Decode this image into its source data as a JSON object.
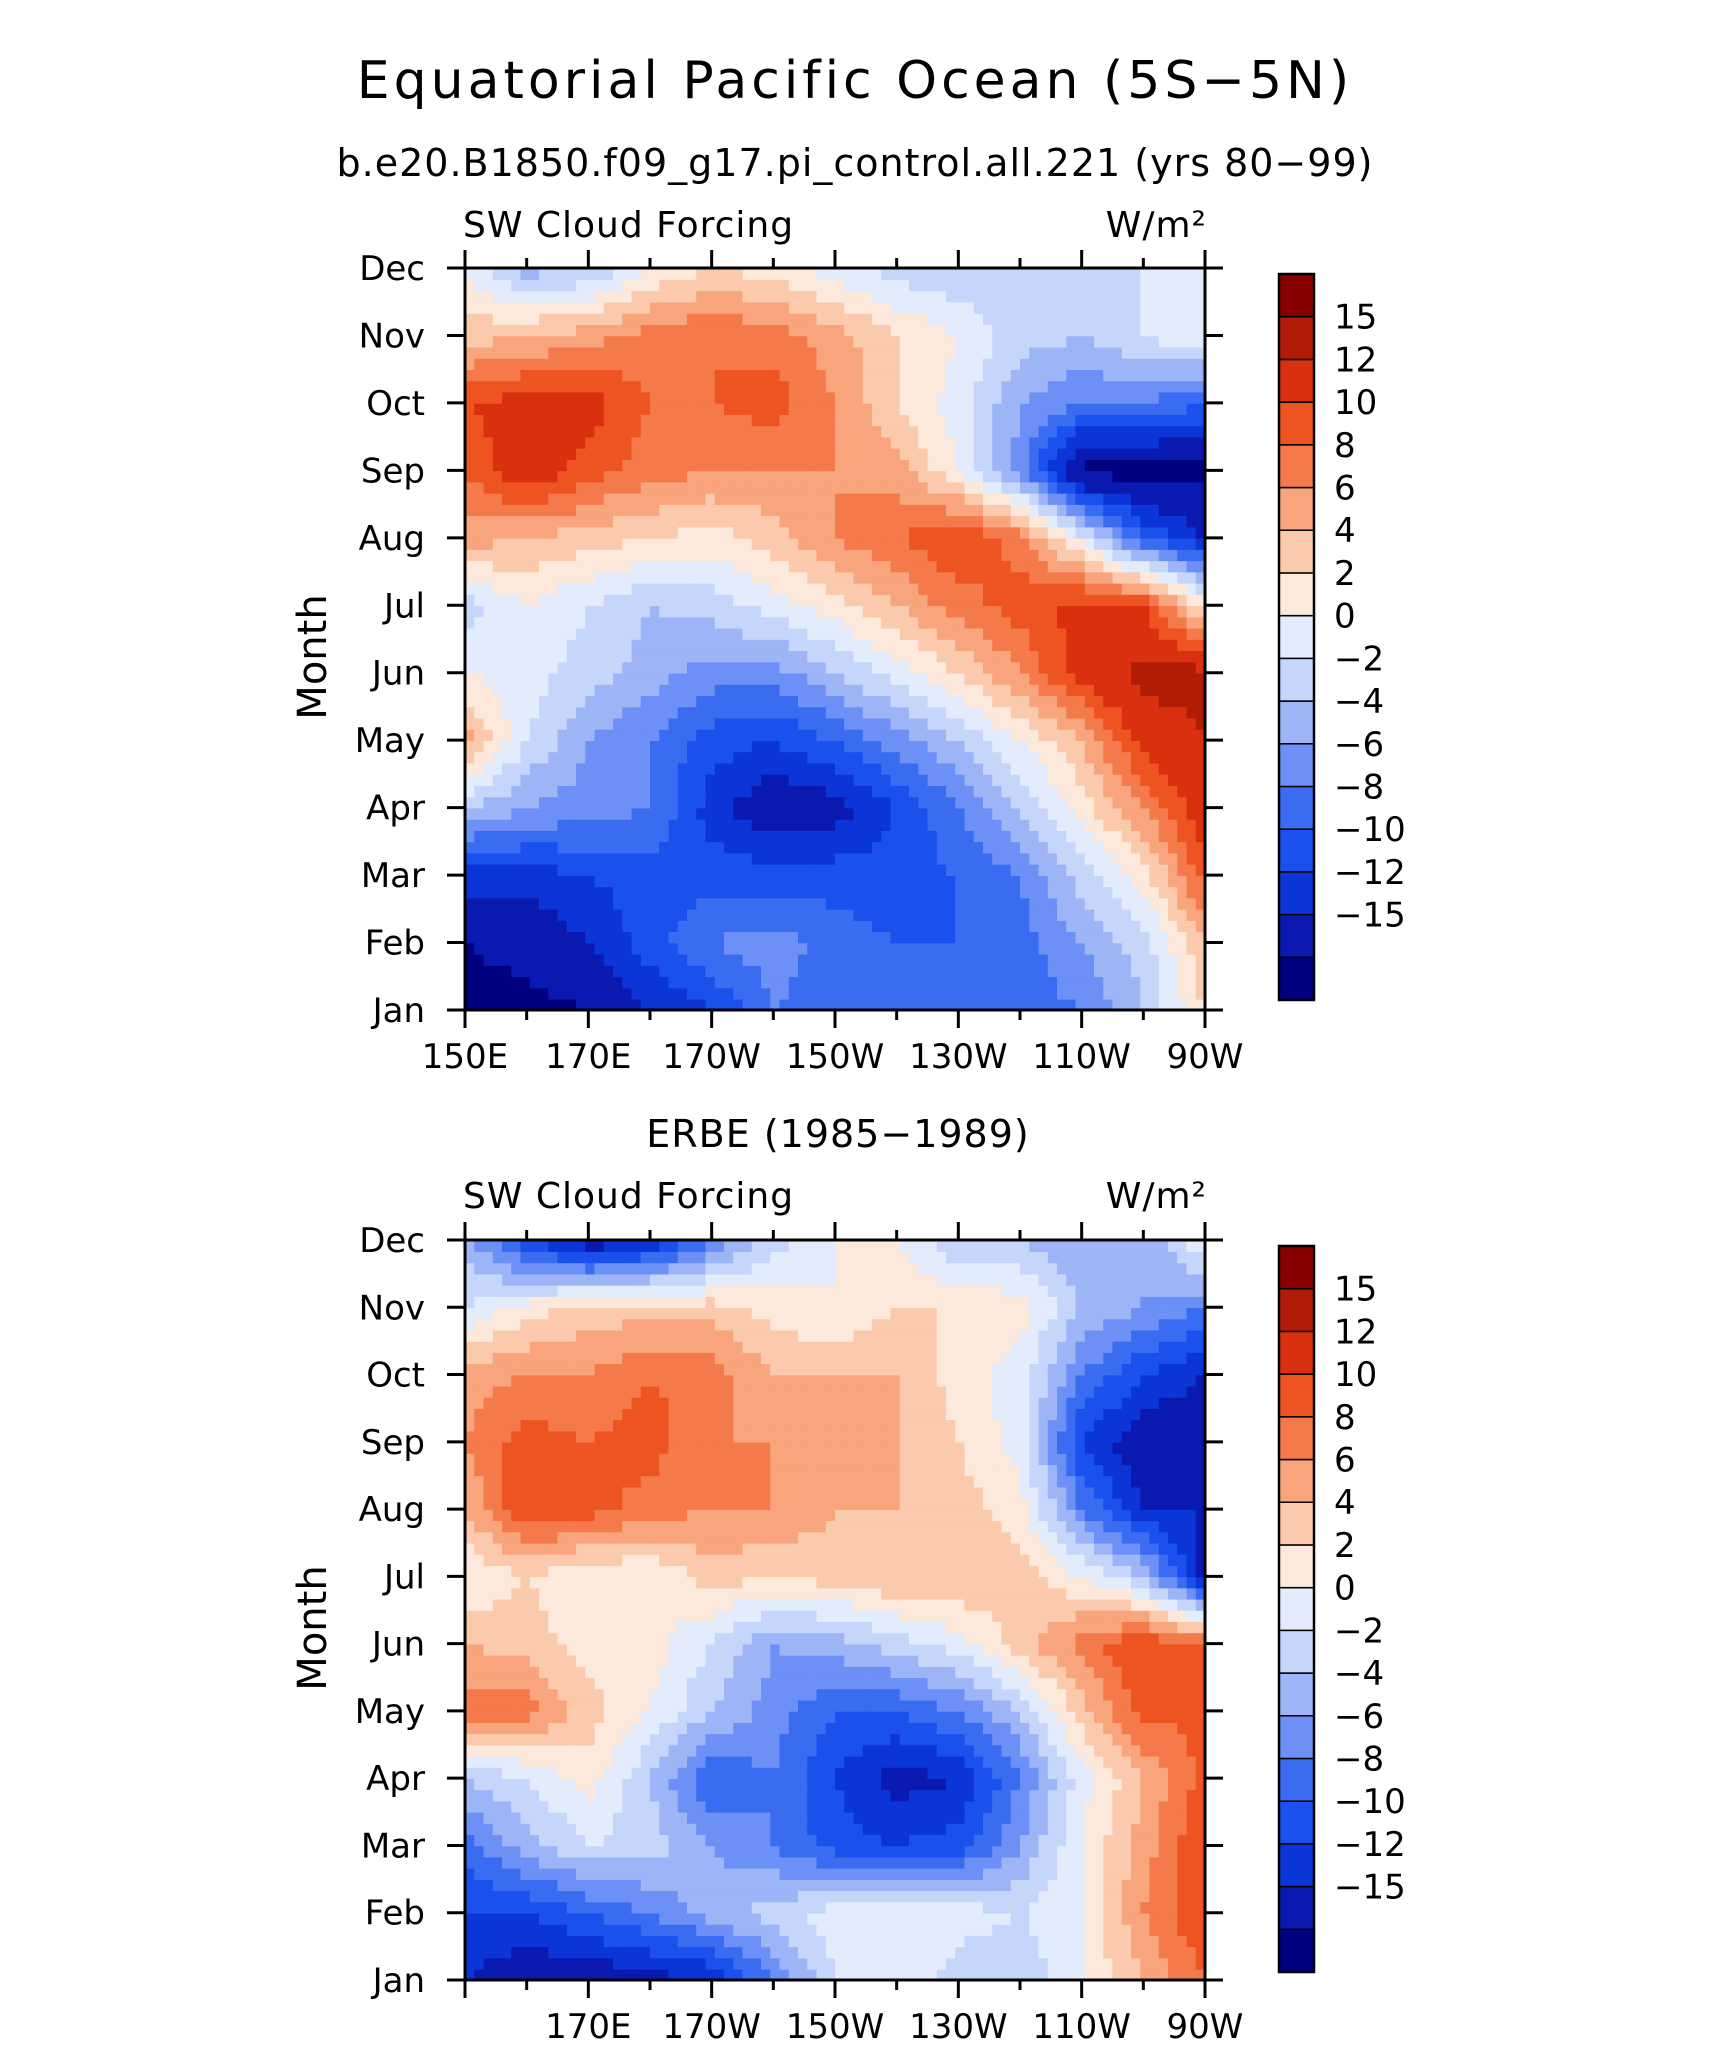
{
  "title": "Equatorial Pacific Ocean (5S−5N)",
  "colors": [
    "#000080",
    "#0a1ab0",
    "#0b35d6",
    "#1a50ec",
    "#3a6cf2",
    "#6c90f6",
    "#9db5f7",
    "#c6d6fa",
    "#e2ecfd",
    "#fde8dc",
    "#fbc9ac",
    "#f8a47c",
    "#f47a4b",
    "#ee5421",
    "#d93010",
    "#b01c06",
    "#880000"
  ],
  "colorbar_labels": [
    "15",
    "12",
    "10",
    "8",
    "6",
    "4",
    "2",
    "0",
    "−2",
    "−4",
    "−6",
    "−8",
    "−10",
    "−12",
    "−15"
  ],
  "chart_data": [
    {
      "type": "heatmap",
      "title": "b.e20.B1850.f09_g17.pi_control.all.221 (yrs 80−99)",
      "left_label": "SW Cloud Forcing",
      "right_label": "W/m²",
      "xlabel": "",
      "ylabel": "Month",
      "units": "W/m²",
      "x_ticks": [
        {
          "lon": 150,
          "label": "150E"
        },
        {
          "lon": 170,
          "label": "170E"
        },
        {
          "lon": 190,
          "label": "170W"
        },
        {
          "lon": 210,
          "label": "150W"
        },
        {
          "lon": 230,
          "label": "130W"
        },
        {
          "lon": 250,
          "label": "110W"
        },
        {
          "lon": 270,
          "label": "90W"
        }
      ],
      "xlim": [
        150,
        270
      ],
      "y_ticks": [
        "Jan",
        "Feb",
        "Mar",
        "Apr",
        "May",
        "Jun",
        "Jul",
        "Aug",
        "Sep",
        "Oct",
        "Nov",
        "Dec"
      ],
      "contour_levels": [
        -15,
        -12,
        -10,
        -8,
        -6,
        -4,
        -2,
        0,
        2,
        4,
        6,
        8,
        10,
        12,
        15
      ],
      "lons": [
        150,
        160,
        170,
        180,
        190,
        200,
        210,
        220,
        230,
        240,
        250,
        260,
        270
      ],
      "values": [
        [
          -16,
          -16,
          -15,
          -12,
          -10,
          -6,
          -7,
          -8,
          -8,
          -7,
          -6,
          -2,
          4
        ],
        [
          -15,
          -14,
          -12,
          -9,
          -6,
          -5,
          -7,
          -8,
          -8,
          -7,
          -4,
          -1,
          6
        ],
        [
          -11,
          -11,
          -10,
          -9,
          -9,
          -9,
          -9,
          -9,
          -8,
          -6,
          -1,
          3,
          11
        ],
        [
          -2,
          -4,
          -5,
          -6,
          -11,
          -14,
          -13,
          -10,
          -6,
          -2,
          3,
          8,
          14
        ],
        [
          7,
          0,
          -4,
          -6,
          -9,
          -10,
          -8,
          -5,
          -2,
          2,
          6,
          13,
          15
        ],
        [
          2,
          1,
          -1,
          -3,
          -5,
          -5,
          -2,
          1,
          4,
          8,
          13,
          16,
          16
        ],
        [
          -1,
          2,
          0,
          -2,
          -1,
          1,
          3,
          6,
          9,
          11,
          13,
          12,
          3
        ],
        [
          7,
          6,
          5,
          4,
          3,
          5,
          8,
          10,
          12,
          9,
          1,
          -8,
          -12
        ],
        [
          10,
          14,
          11,
          9,
          8,
          8,
          8,
          7,
          2,
          -5,
          -16,
          -16,
          -16
        ],
        [
          12,
          13,
          13,
          10,
          10,
          11,
          8,
          4,
          1,
          -4,
          -6,
          -6,
          -8
        ],
        [
          5,
          6,
          7,
          9,
          10,
          9,
          7,
          4,
          2,
          -1,
          -2,
          0,
          2
        ],
        [
          2,
          -3,
          -2,
          2,
          4,
          3,
          1,
          -1,
          -2,
          -2,
          -1,
          0,
          2
        ]
      ]
    },
    {
      "type": "heatmap",
      "title": "ERBE (1985−1989)",
      "left_label": "SW Cloud Forcing",
      "right_label": "W/m²",
      "xlabel": "",
      "ylabel": "Month",
      "units": "W/m²",
      "x_ticks": [
        {
          "lon": 170,
          "label": "170E"
        },
        {
          "lon": 190,
          "label": "170W"
        },
        {
          "lon": 210,
          "label": "150W"
        },
        {
          "lon": 230,
          "label": "130W"
        },
        {
          "lon": 250,
          "label": "110W"
        },
        {
          "lon": 270,
          "label": "90W"
        }
      ],
      "xlim": [
        150,
        270
      ],
      "y_ticks": [
        "Jan",
        "Feb",
        "Mar",
        "Apr",
        "May",
        "Jun",
        "Jul",
        "Aug",
        "Sep",
        "Oct",
        "Nov",
        "Dec"
      ],
      "contour_levels": [
        -15,
        -12,
        -10,
        -8,
        -6,
        -4,
        -2,
        0,
        2,
        4,
        6,
        8,
        10,
        12,
        15
      ],
      "lons": [
        150,
        160,
        170,
        180,
        190,
        200,
        210,
        220,
        230,
        240,
        250,
        260,
        270
      ],
      "values": [
        [
          -12,
          -14,
          -14,
          -13,
          -12,
          -6,
          0,
          2,
          -1,
          -2,
          2,
          6,
          10
        ],
        [
          -10,
          -10,
          -8,
          -6,
          -3,
          -1,
          1,
          1,
          1,
          0,
          2,
          8,
          12
        ],
        [
          -7,
          -3,
          0,
          -1,
          -4,
          -6,
          -9,
          -10,
          -9,
          -4,
          2,
          7,
          12
        ],
        [
          -2,
          0,
          3,
          -2,
          -8,
          -6,
          -10,
          -13,
          -12,
          -6,
          1,
          6,
          11
        ],
        [
          9,
          9,
          5,
          2,
          -2,
          -5,
          -8,
          -8,
          -6,
          -2,
          5,
          11,
          10
        ],
        [
          6,
          5,
          3,
          3,
          0,
          -4,
          -3,
          -1,
          1,
          5,
          9,
          12,
          10
        ],
        [
          2,
          4,
          2,
          2,
          5,
          4,
          5,
          6,
          6,
          5,
          2,
          -2,
          -13
        ],
        [
          6,
          12,
          11,
          9,
          8,
          8,
          6,
          6,
          5,
          3,
          -6,
          -12,
          -12
        ],
        [
          8,
          11,
          10,
          11,
          8,
          8,
          7,
          6,
          4,
          1,
          -10,
          -14,
          -14
        ],
        [
          7,
          8,
          8,
          10,
          9,
          6,
          6,
          6,
          3,
          1,
          -6,
          -10,
          -12
        ],
        [
          0,
          3,
          5,
          5,
          5,
          3,
          2,
          4,
          4,
          3,
          -2,
          -4,
          -6
        ],
        [
          -3,
          -10,
          -14,
          -12,
          -6,
          -1,
          2,
          2,
          -2,
          -2,
          -4,
          -4,
          2
        ]
      ]
    }
  ]
}
